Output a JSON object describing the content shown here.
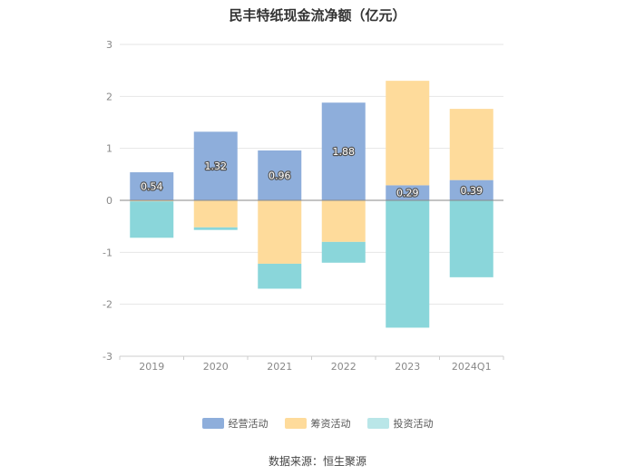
{
  "chart_data": {
    "type": "bar",
    "stacked": true,
    "title": "民丰特纸现金流净额（亿元）",
    "categories": [
      "2019",
      "2020",
      "2021",
      "2022",
      "2023",
      "2024Q1"
    ],
    "ylim": [
      -3,
      3
    ],
    "yticks": [
      3,
      2,
      1,
      0,
      -1,
      -2,
      -3
    ],
    "grid": true,
    "legend_position": "bottom",
    "series": [
      {
        "name": "经营活动",
        "color": "#8eaedb",
        "values": [
          0.54,
          1.32,
          0.96,
          1.88,
          0.29,
          0.39
        ],
        "labels": [
          "0.54",
          "1.32",
          "0.96",
          "1.88",
          "0.29",
          "0.39"
        ]
      },
      {
        "name": "筹资活动",
        "color": "#fedb9b",
        "values": [
          -0.02,
          -0.52,
          -1.22,
          -0.8,
          2.01,
          1.37
        ]
      },
      {
        "name": "投资活动",
        "color": "#8ad6da",
        "values": [
          -0.7,
          -0.05,
          -0.48,
          -0.4,
          -2.45,
          -1.48
        ]
      }
    ]
  },
  "legend": {
    "items": [
      {
        "label": "经营活动",
        "color": "#8eaedb"
      },
      {
        "label": "筹资活动",
        "color": "#fedb9b"
      },
      {
        "label": "投资活动",
        "color": "#b9e6e8"
      }
    ]
  },
  "source": "数据来源：恒生聚源"
}
